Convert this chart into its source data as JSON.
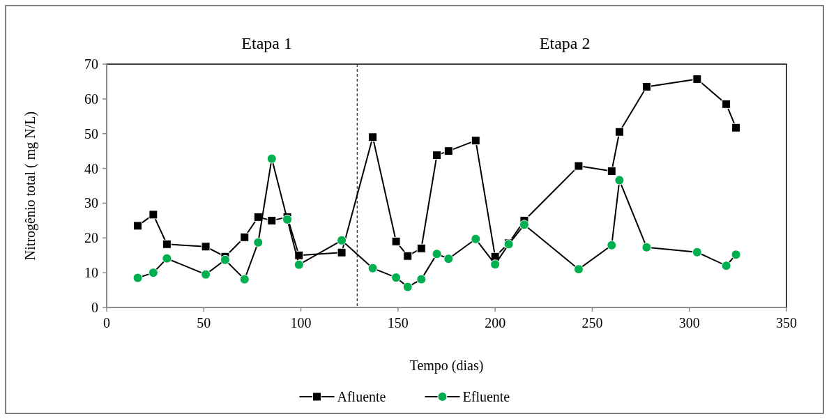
{
  "chart_data": {
    "type": "line",
    "xlabel": "Tempo (dias)",
    "ylabel": "Nitrogênio total ( mg N/L)",
    "xlim": [
      0,
      350
    ],
    "xticks": [
      0,
      50,
      100,
      150,
      200,
      250,
      300,
      350
    ],
    "ylim": [
      0,
      70
    ],
    "yticks": [
      0,
      10,
      20,
      30,
      40,
      50,
      60,
      70
    ],
    "grid": false,
    "legend": "bottom",
    "annotations": [
      "Etapa 1",
      "Etapa 2"
    ],
    "ref_lines": [
      {
        "axis": "x",
        "value": 129,
        "line_style": "dashed",
        "color": "#404040"
      }
    ],
    "series": [
      {
        "name": "Afluente",
        "color": "#000000",
        "marker": "square",
        "x": [
          16,
          24,
          31,
          51,
          61,
          71,
          78,
          85,
          93,
          99,
          121,
          137,
          149,
          155,
          162,
          170,
          176,
          190,
          200,
          207,
          215,
          243,
          260,
          264,
          278,
          304,
          319,
          324
        ],
        "values": [
          23.5,
          26.7,
          18.2,
          17.5,
          14.6,
          20.2,
          26,
          25,
          26,
          15,
          15.8,
          49,
          19,
          14.8,
          17,
          43.8,
          45,
          48,
          14.6,
          18.5,
          25,
          40.7,
          39.2,
          50.5,
          63.5,
          65.7,
          58.5,
          51.7
        ]
      },
      {
        "name": "Efluente",
        "color": "#00b050",
        "marker": "circle",
        "x": [
          16,
          24,
          31,
          51,
          61,
          71,
          78,
          85,
          93,
          99,
          121,
          137,
          149,
          155,
          162,
          170,
          176,
          190,
          200,
          207,
          215,
          243,
          260,
          264,
          278,
          304,
          319,
          324
        ],
        "values": [
          8.5,
          10,
          14.1,
          9.5,
          13.7,
          8.1,
          18.7,
          42.8,
          25.3,
          12.3,
          19.3,
          11.3,
          8.6,
          5.9,
          8.1,
          15.4,
          14,
          19.7,
          12.4,
          18.2,
          23.8,
          11,
          17.9,
          36.6,
          17.3,
          15.9,
          12,
          15.2
        ]
      }
    ]
  }
}
